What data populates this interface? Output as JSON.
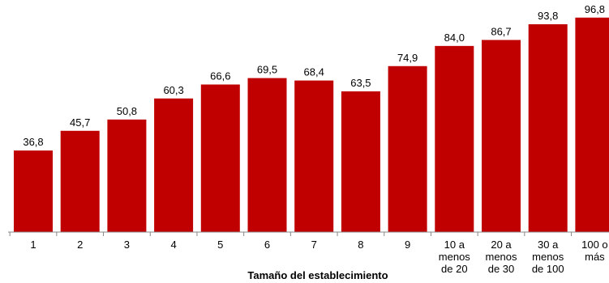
{
  "chart_data": {
    "type": "bar",
    "categories": [
      "1",
      "2",
      "3",
      "4",
      "5",
      "6",
      "7",
      "8",
      "9",
      "10 a menos de 20",
      "20 a menos de 30",
      "30 a menos de 100",
      "100 o más"
    ],
    "category_lines": [
      [
        "1"
      ],
      [
        "2"
      ],
      [
        "3"
      ],
      [
        "4"
      ],
      [
        "5"
      ],
      [
        "6"
      ],
      [
        "7"
      ],
      [
        "8"
      ],
      [
        "9"
      ],
      [
        "10 a",
        "menos",
        "de 20"
      ],
      [
        "20 a",
        "menos",
        "de 30"
      ],
      [
        "30 a",
        "menos",
        "de 100"
      ],
      [
        "100 o",
        "más"
      ]
    ],
    "values": [
      36.8,
      45.7,
      50.8,
      60.3,
      66.6,
      69.5,
      68.4,
      63.5,
      74.9,
      84.0,
      86.7,
      93.8,
      96.8
    ],
    "value_labels": [
      "36,8",
      "45,7",
      "50,8",
      "60,3",
      "66,6",
      "69,5",
      "68,4",
      "63,5",
      "74,9",
      "84,0",
      "86,7",
      "93,8",
      "96,8"
    ],
    "xlabel": "Tamaño del establecimiento",
    "ylabel": "",
    "ylim": [
      0,
      100
    ],
    "bar_color": "#c00000",
    "grid": false
  }
}
